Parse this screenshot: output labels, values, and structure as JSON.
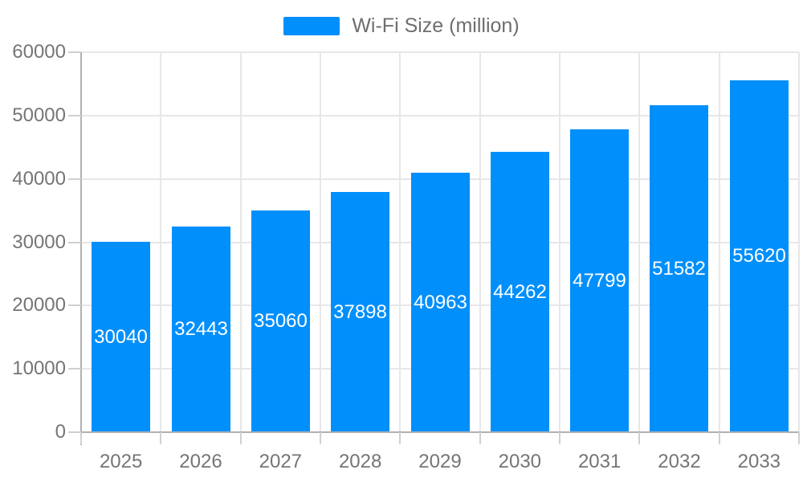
{
  "chart_data": {
    "type": "bar",
    "title": "",
    "legend": {
      "label": "Wi-Fi Size (million)",
      "position": "top"
    },
    "categories": [
      "2025",
      "2026",
      "2027",
      "2028",
      "2029",
      "2030",
      "2031",
      "2032",
      "2033"
    ],
    "series": [
      {
        "name": "Wi-Fi Size (million)",
        "values": [
          30040,
          32443,
          35060,
          37898,
          40963,
          44262,
          47799,
          51582,
          55620
        ]
      }
    ],
    "data_labels": [
      "30040",
      "32443",
      "35060",
      "37898",
      "40963",
      "44262",
      "47799",
      "51582",
      "55620"
    ],
    "xlabel": "",
    "ylabel": "",
    "ylim": [
      0,
      60000
    ],
    "ytick_step": 10000,
    "yticks": [
      0,
      10000,
      20000,
      30000,
      40000,
      50000,
      60000
    ],
    "ytick_labels": [
      "0",
      "10000",
      "20000",
      "30000",
      "40000",
      "50000",
      "60000"
    ],
    "grid": "on",
    "colors": {
      "bar": "#008FFB",
      "gridline": "#e7e7e7",
      "axis_line": "#b0b0b0",
      "axis_tick": "#d0d0d0",
      "axis_text": "#757575",
      "legend_text": "#6e6e6e",
      "data_label_text": "#ffffff",
      "background": "#ffffff"
    }
  }
}
